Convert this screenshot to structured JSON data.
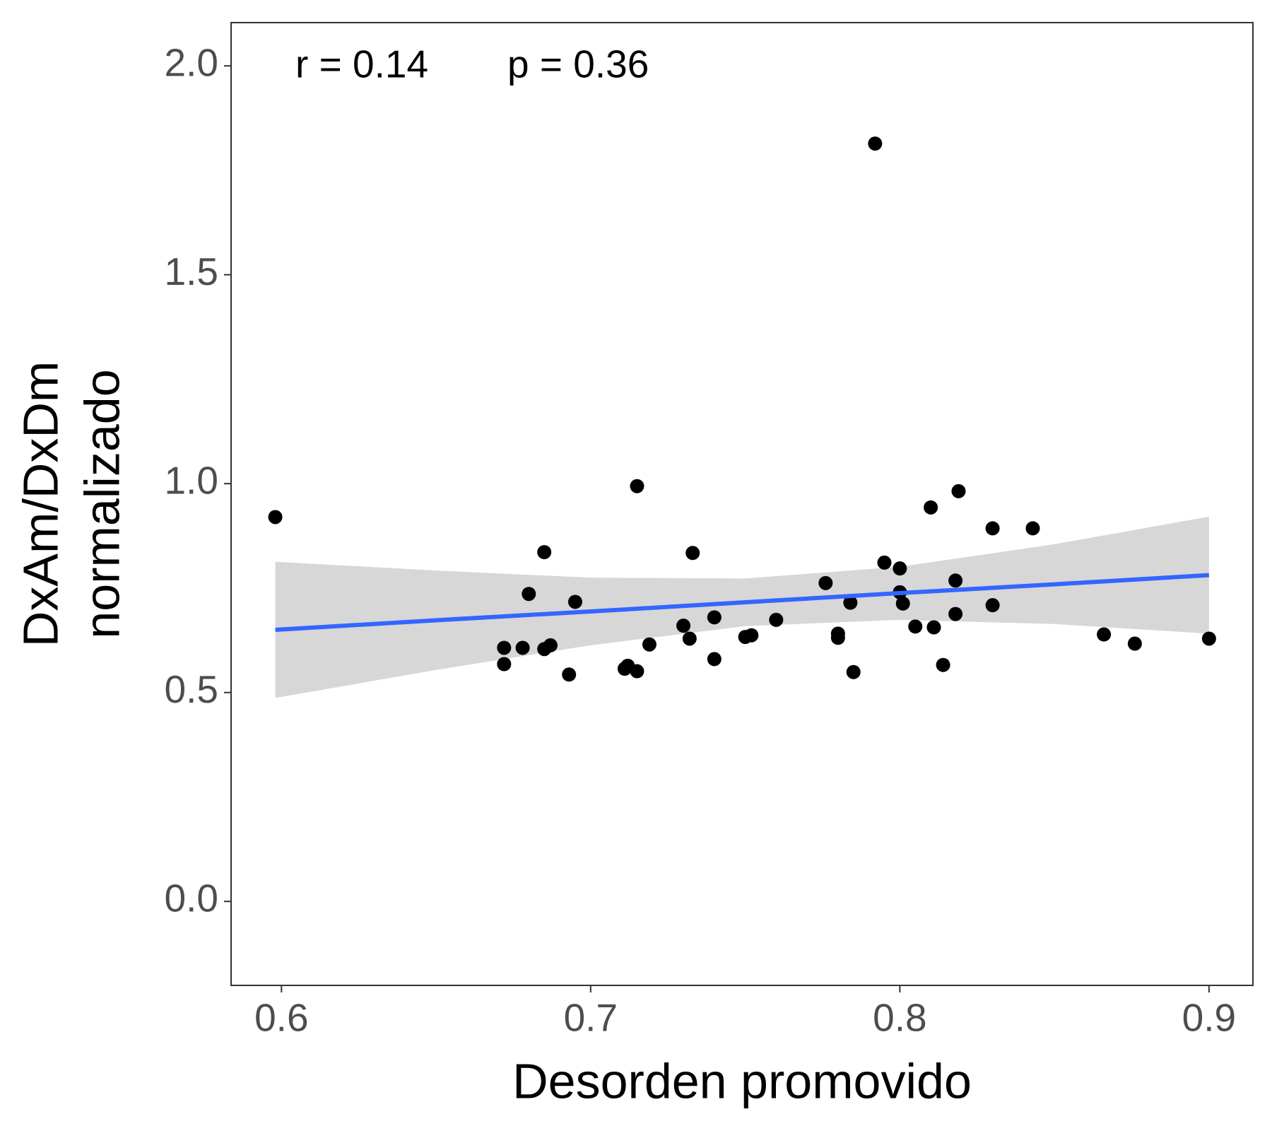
{
  "chart_data": {
    "type": "scatter",
    "x_label": "Desorden promovido",
    "y_label": [
      "DxAm/DxDm",
      "normalizado"
    ],
    "annotations": [
      "r =  0.14",
      "p =  0.36"
    ],
    "x": [
      0.598,
      0.672,
      0.672,
      0.678,
      0.68,
      0.685,
      0.685,
      0.687,
      0.693,
      0.695,
      0.711,
      0.712,
      0.715,
      0.715,
      0.719,
      0.73,
      0.732,
      0.733,
      0.74,
      0.74,
      0.75,
      0.752,
      0.76,
      0.776,
      0.78,
      0.78,
      0.784,
      0.785,
      0.792,
      0.795,
      0.8,
      0.8,
      0.801,
      0.805,
      0.81,
      0.811,
      0.814,
      0.818,
      0.818,
      0.819,
      0.83,
      0.83,
      0.843,
      0.866,
      0.876,
      0.9
    ],
    "values": [
      0.92,
      0.568,
      0.607,
      0.607,
      0.736,
      0.836,
      0.604,
      0.613,
      0.543,
      0.717,
      0.557,
      0.564,
      0.994,
      0.551,
      0.615,
      0.66,
      0.629,
      0.834,
      0.68,
      0.58,
      0.633,
      0.637,
      0.674,
      0.762,
      0.641,
      0.631,
      0.715,
      0.549,
      1.814,
      0.811,
      0.797,
      0.74,
      0.713,
      0.658,
      0.943,
      0.656,
      0.566,
      0.768,
      0.688,
      0.982,
      0.893,
      0.709,
      0.893,
      0.639,
      0.617,
      0.629
    ],
    "color": "#000000",
    "trend": {
      "x": [
        0.598,
        0.65,
        0.7,
        0.75,
        0.8,
        0.85,
        0.9
      ],
      "values": [
        0.65,
        0.673,
        0.694,
        0.716,
        0.738,
        0.759,
        0.781
      ],
      "lower": [
        0.487,
        0.554,
        0.613,
        0.659,
        0.674,
        0.664,
        0.641
      ],
      "upper": [
        0.813,
        0.792,
        0.775,
        0.773,
        0.801,
        0.855,
        0.921
      ],
      "color": "#3366ff",
      "band_color": "#d3d3d3"
    },
    "xlim": [
      0.5837,
      0.9142
    ],
    "ylim": [
      -0.201,
      2.1035
    ],
    "xticks": [
      0.6,
      0.7,
      0.8,
      0.9
    ],
    "yticks": [
      {
        "value": 0,
        "label": "0.0"
      },
      {
        "value": 0.5,
        "label": "0.5"
      },
      {
        "value": 1,
        "label": "1.0"
      },
      {
        "value": 1.5,
        "label": "1.5"
      },
      {
        "value": 2,
        "label": "2.0"
      }
    ],
    "grid": false
  }
}
